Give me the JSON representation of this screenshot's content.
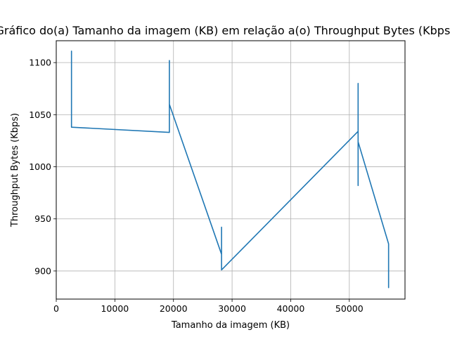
{
  "chart_data": {
    "type": "line",
    "title": "Gráfico do(a) Tamanho da imagem (KB) em relação a(o) Throughput Bytes (Kbps)",
    "xlabel": "Tamanho da imagem (KB)",
    "ylabel": "Throughput Bytes (Kbps)",
    "xlim": [
      0,
      59500
    ],
    "ylim": [
      873,
      1121
    ],
    "xticks": [
      0,
      10000,
      20000,
      30000,
      40000,
      50000
    ],
    "yticks": [
      900,
      950,
      1000,
      1050,
      1100
    ],
    "grid": true,
    "color": "#1f77b4",
    "series": [
      {
        "x": [
          2600,
          2600,
          2600,
          2600,
          2600,
          2600,
          19300,
          19300,
          19300,
          19300,
          19300,
          28200,
          28200,
          28200,
          28200,
          51500,
          51500,
          51500,
          51500,
          56700,
          56700,
          56700,
          56700,
          56700
        ],
        "y": [
          1102,
          1060,
          1111,
          1100,
          1038,
          1038,
          1033,
          1102,
          1035,
          1063,
          1060,
          916,
          942,
          905,
          901,
          1034,
          982,
          1080,
          1024,
          926,
          884,
          922,
          886,
          923
        ]
      }
    ]
  }
}
